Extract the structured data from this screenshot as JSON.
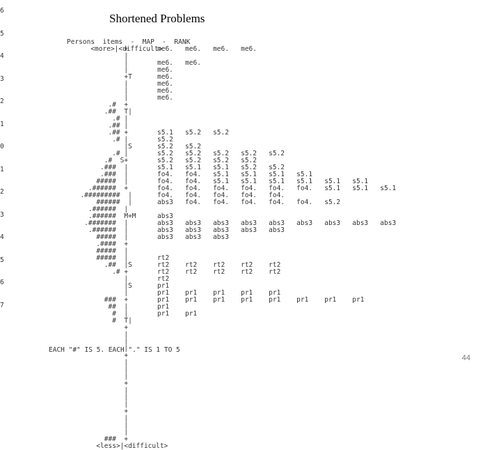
{
  "slide": {
    "title": "Shortened Problems",
    "page_number": "44"
  },
  "map": {
    "header_lines": [
      "Persons  items  -  MAP  -  RANK",
      "      <more>|<difficult>"
    ],
    "ticks": [
      "6",
      "5",
      "4",
      "3",
      "2",
      "1",
      "0",
      "1",
      "2",
      "3",
      "4",
      "5",
      "6",
      "7"
    ],
    "distribution_lines": [
      "             +",
      "             |",
      "             |",
      "             |",
      "             +T",
      "             |",
      "             |",
      "             |",
      "         .#  +",
      "        .##  T|",
      "          .# |",
      "         .## |",
      "         .## +",
      "          .# |",
      "             |S",
      "          .# |",
      "        .#  S+",
      "       .###  |",
      "       .###  |",
      "      #####  |",
      "    .######  +",
      "  .#########  |",
      "      ######  |",
      "    .######  |",
      "    .######  M+M",
      "   .#######  |",
      "    .######  |",
      "      #####  |",
      "      .####  +",
      "      #####  |",
      "      #####  |",
      "        .##  |S",
      "          .# +",
      "             |",
      "             |S",
      "             |",
      "        ###  +",
      "         ##  |",
      "          #  |",
      "          #  T|",
      "             +",
      "             |",
      "             |",
      "             |",
      "             +",
      "             |",
      "             |",
      "             |",
      "             +",
      "             |",
      "             |",
      "             |",
      "             +",
      "             |",
      "             |",
      "             |",
      "        ###  +",
      "      <less>|<difficult>"
    ],
    "item_lines": [
      "me6.   me6.   me6.   me6.",
      "",
      "me6.   me6.",
      "me6.",
      "me6.",
      "me6.",
      "me6.",
      "me6.",
      "",
      "",
      "",
      "",
      "s5.1   s5.2   s5.2",
      "s5.2",
      "s5.2   s5.2",
      "s5.2   s5.2   s5.2   s5.2   s5.2",
      "s5.2   s5.2   s5.2   s5.2",
      "s5.1   s5.1   s5.1   s5.2   s5.2",
      "fo4.   fo4.   s5.1   s5.1   s5.1   s5.1",
      "fo4.   fo4.   s5.1   s5.1   s5.1   s5.1   s5.1   s5.1",
      "fo4.   fo4.   fo4.   fo4.   fo4.   fo4.   s5.1   s5.1   s5.1",
      "fo4.   fo4.   fo4.   fo4.   fo4.",
      "abs3   fo4.   fo4.   fo4.   fo4.   fo4.   s5.2",
      "",
      "abs3",
      "abs3   abs3   abs3   abs3   abs3   abs3   abs3   abs3   abs3",
      "abs3   abs3   abs3   abs3   abs3",
      "abs3   abs3   abs3",
      "",
      "",
      "rt2",
      "rt2    rt2    rt2    rt2    rt2",
      "rt2    rt2    rt2    rt2    rt2",
      "rt2",
      "pr1",
      "pr1    pr1    pr1    pr1    pr1",
      "pr1    pr1    pr1    pr1    pr1    pr1    pr1    pr1",
      "pr1",
      "pr1    pr1"
    ],
    "footer": "EACH \"#\" IS 5. EACH \".\" IS 1 TO 5"
  }
}
